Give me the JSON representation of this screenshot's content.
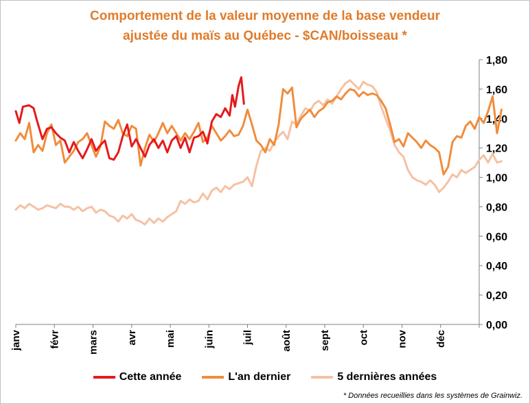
{
  "chart_data": {
    "type": "line",
    "title": "Comportement de la valeur moyenne de la base vendeur",
    "subtitle": "ajustée du maïs au Québec - $CAN/boisseau *",
    "x_categories": [
      "janv",
      "févr",
      "mars",
      "avr",
      "mai",
      "juin",
      "juil",
      "août",
      "sept",
      "oct",
      "nov",
      "déc"
    ],
    "y_ticks": [
      "0,00",
      "0,20",
      "0,40",
      "0,60",
      "0,80",
      "1,00",
      "1,20",
      "1,40",
      "1,60",
      "1,80"
    ],
    "ylim": [
      0,
      1.8
    ],
    "x_unit": "week of year (0 = début janvier, 52 = fin décembre)",
    "xlim": [
      0,
      52
    ],
    "grid": false,
    "legend_position": "bottom",
    "series": [
      {
        "name": "Cette année",
        "color": "#e41a1c",
        "points": [
          [
            0,
            1.45
          ],
          [
            0.4,
            1.37
          ],
          [
            0.8,
            1.48
          ],
          [
            1.5,
            1.49
          ],
          [
            2,
            1.47
          ],
          [
            2.4,
            1.38
          ],
          [
            3,
            1.26
          ],
          [
            3.5,
            1.33
          ],
          [
            4,
            1.34
          ],
          [
            4.5,
            1.3
          ],
          [
            5,
            1.27
          ],
          [
            5.5,
            1.25
          ],
          [
            6,
            1.17
          ],
          [
            6.5,
            1.24
          ],
          [
            7,
            1.18
          ],
          [
            7.5,
            1.13
          ],
          [
            8,
            1.19
          ],
          [
            8.5,
            1.26
          ],
          [
            9,
            1.18
          ],
          [
            9.5,
            1.22
          ],
          [
            10,
            1.25
          ],
          [
            10.5,
            1.13
          ],
          [
            11,
            1.12
          ],
          [
            11.5,
            1.17
          ],
          [
            12,
            1.28
          ],
          [
            12.5,
            1.36
          ],
          [
            13,
            1.21
          ],
          [
            13.5,
            1.26
          ],
          [
            14,
            1.2
          ],
          [
            14.5,
            1.14
          ],
          [
            15,
            1.22
          ],
          [
            15.5,
            1.26
          ],
          [
            16,
            1.2
          ],
          [
            16.5,
            1.25
          ],
          [
            17,
            1.17
          ],
          [
            17.5,
            1.25
          ],
          [
            18,
            1.28
          ],
          [
            18.5,
            1.2
          ],
          [
            19,
            1.27
          ],
          [
            19.5,
            1.17
          ],
          [
            20,
            1.27
          ],
          [
            20.5,
            1.28
          ],
          [
            21,
            1.31
          ],
          [
            21.5,
            1.23
          ],
          [
            22,
            1.38
          ],
          [
            22.5,
            1.43
          ],
          [
            23,
            1.41
          ],
          [
            23.5,
            1.47
          ],
          [
            24,
            1.42
          ],
          [
            24.3,
            1.56
          ],
          [
            24.6,
            1.48
          ],
          [
            25,
            1.62
          ],
          [
            25.3,
            1.68
          ],
          [
            25.6,
            1.5
          ]
        ]
      },
      {
        "name": "L'an dernier",
        "color": "#f08c3c",
        "points": [
          [
            0,
            1.25
          ],
          [
            0.5,
            1.3
          ],
          [
            1,
            1.26
          ],
          [
            1.5,
            1.37
          ],
          [
            2,
            1.17
          ],
          [
            2.5,
            1.22
          ],
          [
            3,
            1.18
          ],
          [
            3.5,
            1.3
          ],
          [
            4,
            1.36
          ],
          [
            4.5,
            1.22
          ],
          [
            5,
            1.25
          ],
          [
            5.5,
            1.1
          ],
          [
            6,
            1.14
          ],
          [
            6.5,
            1.18
          ],
          [
            7,
            1.24
          ],
          [
            7.5,
            1.26
          ],
          [
            8,
            1.3
          ],
          [
            8.5,
            1.22
          ],
          [
            9,
            1.14
          ],
          [
            9.5,
            1.21
          ],
          [
            10,
            1.38
          ],
          [
            10.5,
            1.35
          ],
          [
            11,
            1.33
          ],
          [
            11.5,
            1.39
          ],
          [
            12,
            1.3
          ],
          [
            12.5,
            1.28
          ],
          [
            13,
            1.35
          ],
          [
            13.5,
            1.33
          ],
          [
            14,
            1.08
          ],
          [
            14.5,
            1.2
          ],
          [
            15,
            1.29
          ],
          [
            15.5,
            1.24
          ],
          [
            16,
            1.3
          ],
          [
            16.5,
            1.37
          ],
          [
            17,
            1.3
          ],
          [
            17.5,
            1.35
          ],
          [
            18,
            1.3
          ],
          [
            18.5,
            1.25
          ],
          [
            19,
            1.3
          ],
          [
            19.5,
            1.26
          ],
          [
            20,
            1.31
          ],
          [
            20.5,
            1.37
          ],
          [
            21,
            1.24
          ],
          [
            21.5,
            1.27
          ],
          [
            22,
            1.35
          ],
          [
            22.5,
            1.3
          ],
          [
            23,
            1.25
          ],
          [
            23.5,
            1.28
          ],
          [
            24,
            1.32
          ],
          [
            24.5,
            1.28
          ],
          [
            25,
            1.29
          ],
          [
            25.5,
            1.35
          ],
          [
            26,
            1.46
          ],
          [
            26.5,
            1.36
          ],
          [
            27,
            1.25
          ],
          [
            27.5,
            1.22
          ],
          [
            28,
            1.17
          ],
          [
            28.5,
            1.26
          ],
          [
            29,
            1.22
          ],
          [
            29.5,
            1.36
          ],
          [
            30,
            1.6
          ],
          [
            30.5,
            1.57
          ],
          [
            31,
            1.61
          ],
          [
            31.5,
            1.34
          ],
          [
            32,
            1.4
          ],
          [
            32.5,
            1.43
          ],
          [
            33,
            1.46
          ],
          [
            33.5,
            1.41
          ],
          [
            34,
            1.45
          ],
          [
            34.5,
            1.47
          ],
          [
            35,
            1.51
          ],
          [
            35.5,
            1.52
          ],
          [
            36,
            1.55
          ],
          [
            36.5,
            1.53
          ],
          [
            37,
            1.57
          ],
          [
            37.5,
            1.6
          ],
          [
            38,
            1.59
          ],
          [
            38.5,
            1.55
          ],
          [
            39,
            1.58
          ],
          [
            39.5,
            1.56
          ],
          [
            40,
            1.57
          ],
          [
            40.5,
            1.56
          ],
          [
            41,
            1.52
          ],
          [
            41.5,
            1.47
          ],
          [
            42,
            1.36
          ],
          [
            42.5,
            1.24
          ],
          [
            43,
            1.26
          ],
          [
            43.5,
            1.21
          ],
          [
            44,
            1.3
          ],
          [
            44.5,
            1.27
          ],
          [
            45,
            1.24
          ],
          [
            45.5,
            1.2
          ],
          [
            46,
            1.25
          ],
          [
            46.5,
            1.22
          ],
          [
            47,
            1.2
          ],
          [
            47.5,
            1.17
          ],
          [
            48,
            1.02
          ],
          [
            48.5,
            1.07
          ],
          [
            49,
            1.24
          ],
          [
            49.5,
            1.28
          ],
          [
            50,
            1.27
          ],
          [
            50.5,
            1.35
          ],
          [
            51,
            1.38
          ],
          [
            51.5,
            1.33
          ],
          [
            52,
            1.41
          ],
          [
            52.5,
            1.37
          ],
          [
            53,
            1.45
          ],
          [
            53.5,
            1.55
          ],
          [
            54,
            1.3
          ],
          [
            54.5,
            1.46
          ]
        ]
      },
      {
        "name": "5 dernières années",
        "color": "#f5c1a3",
        "points": [
          [
            0,
            0.78
          ],
          [
            0.5,
            0.81
          ],
          [
            1,
            0.79
          ],
          [
            1.5,
            0.82
          ],
          [
            2,
            0.8
          ],
          [
            2.5,
            0.78
          ],
          [
            3,
            0.79
          ],
          [
            3.5,
            0.81
          ],
          [
            4,
            0.8
          ],
          [
            4.5,
            0.79
          ],
          [
            5,
            0.82
          ],
          [
            5.5,
            0.8
          ],
          [
            6,
            0.8
          ],
          [
            6.5,
            0.78
          ],
          [
            7,
            0.8
          ],
          [
            7.5,
            0.77
          ],
          [
            8,
            0.79
          ],
          [
            8.5,
            0.8
          ],
          [
            9,
            0.76
          ],
          [
            9.5,
            0.78
          ],
          [
            10,
            0.77
          ],
          [
            10.5,
            0.74
          ],
          [
            11,
            0.73
          ],
          [
            11.5,
            0.7
          ],
          [
            12,
            0.74
          ],
          [
            12.5,
            0.72
          ],
          [
            13,
            0.75
          ],
          [
            13.5,
            0.71
          ],
          [
            14,
            0.7
          ],
          [
            14.5,
            0.68
          ],
          [
            15,
            0.72
          ],
          [
            15.5,
            0.69
          ],
          [
            16,
            0.72
          ],
          [
            16.5,
            0.7
          ],
          [
            17,
            0.73
          ],
          [
            17.5,
            0.75
          ],
          [
            18,
            0.77
          ],
          [
            18.5,
            0.84
          ],
          [
            19,
            0.82
          ],
          [
            19.5,
            0.85
          ],
          [
            20,
            0.83
          ],
          [
            20.5,
            0.84
          ],
          [
            21,
            0.89
          ],
          [
            21.5,
            0.85
          ],
          [
            22,
            0.91
          ],
          [
            22.5,
            0.93
          ],
          [
            23,
            0.9
          ],
          [
            23.5,
            0.94
          ],
          [
            24,
            0.92
          ],
          [
            24.5,
            0.95
          ],
          [
            25,
            0.96
          ],
          [
            25.5,
            0.97
          ],
          [
            26,
            1.0
          ],
          [
            26.5,
            0.94
          ],
          [
            27,
            1.08
          ],
          [
            27.5,
            1.18
          ],
          [
            28,
            1.2
          ],
          [
            28.5,
            1.18
          ],
          [
            29,
            1.24
          ],
          [
            29.5,
            1.28
          ],
          [
            30,
            1.31
          ],
          [
            30.5,
            1.26
          ],
          [
            31,
            1.38
          ],
          [
            31.5,
            1.36
          ],
          [
            32,
            1.42
          ],
          [
            32.5,
            1.47
          ],
          [
            33,
            1.45
          ],
          [
            33.5,
            1.5
          ],
          [
            34,
            1.52
          ],
          [
            34.5,
            1.49
          ],
          [
            35,
            1.53
          ],
          [
            35.5,
            1.5
          ],
          [
            36,
            1.55
          ],
          [
            36.5,
            1.6
          ],
          [
            37,
            1.64
          ],
          [
            37.5,
            1.66
          ],
          [
            38,
            1.63
          ],
          [
            38.5,
            1.6
          ],
          [
            39,
            1.65
          ],
          [
            39.5,
            1.63
          ],
          [
            40,
            1.62
          ],
          [
            40.5,
            1.58
          ],
          [
            41,
            1.48
          ],
          [
            41.5,
            1.4
          ],
          [
            42,
            1.32
          ],
          [
            42.5,
            1.22
          ],
          [
            43,
            1.17
          ],
          [
            43.5,
            1.14
          ],
          [
            44,
            1.05
          ],
          [
            44.5,
            1.0
          ],
          [
            45,
            0.98
          ],
          [
            45.5,
            0.97
          ],
          [
            46,
            0.95
          ],
          [
            46.5,
            0.98
          ],
          [
            47,
            0.95
          ],
          [
            47.5,
            0.9
          ],
          [
            48,
            0.93
          ],
          [
            48.5,
            0.97
          ],
          [
            49,
            1.02
          ],
          [
            49.5,
            1.0
          ],
          [
            50,
            1.05
          ],
          [
            50.5,
            1.03
          ],
          [
            51,
            1.05
          ],
          [
            51.5,
            1.07
          ],
          [
            52,
            1.12
          ],
          [
            52.5,
            1.15
          ],
          [
            53,
            1.1
          ],
          [
            53.5,
            1.16
          ],
          [
            54,
            1.1
          ],
          [
            54.5,
            1.11
          ]
        ]
      }
    ],
    "footnote": "* Données recueillies dans les systèmes de Grainwiz."
  }
}
